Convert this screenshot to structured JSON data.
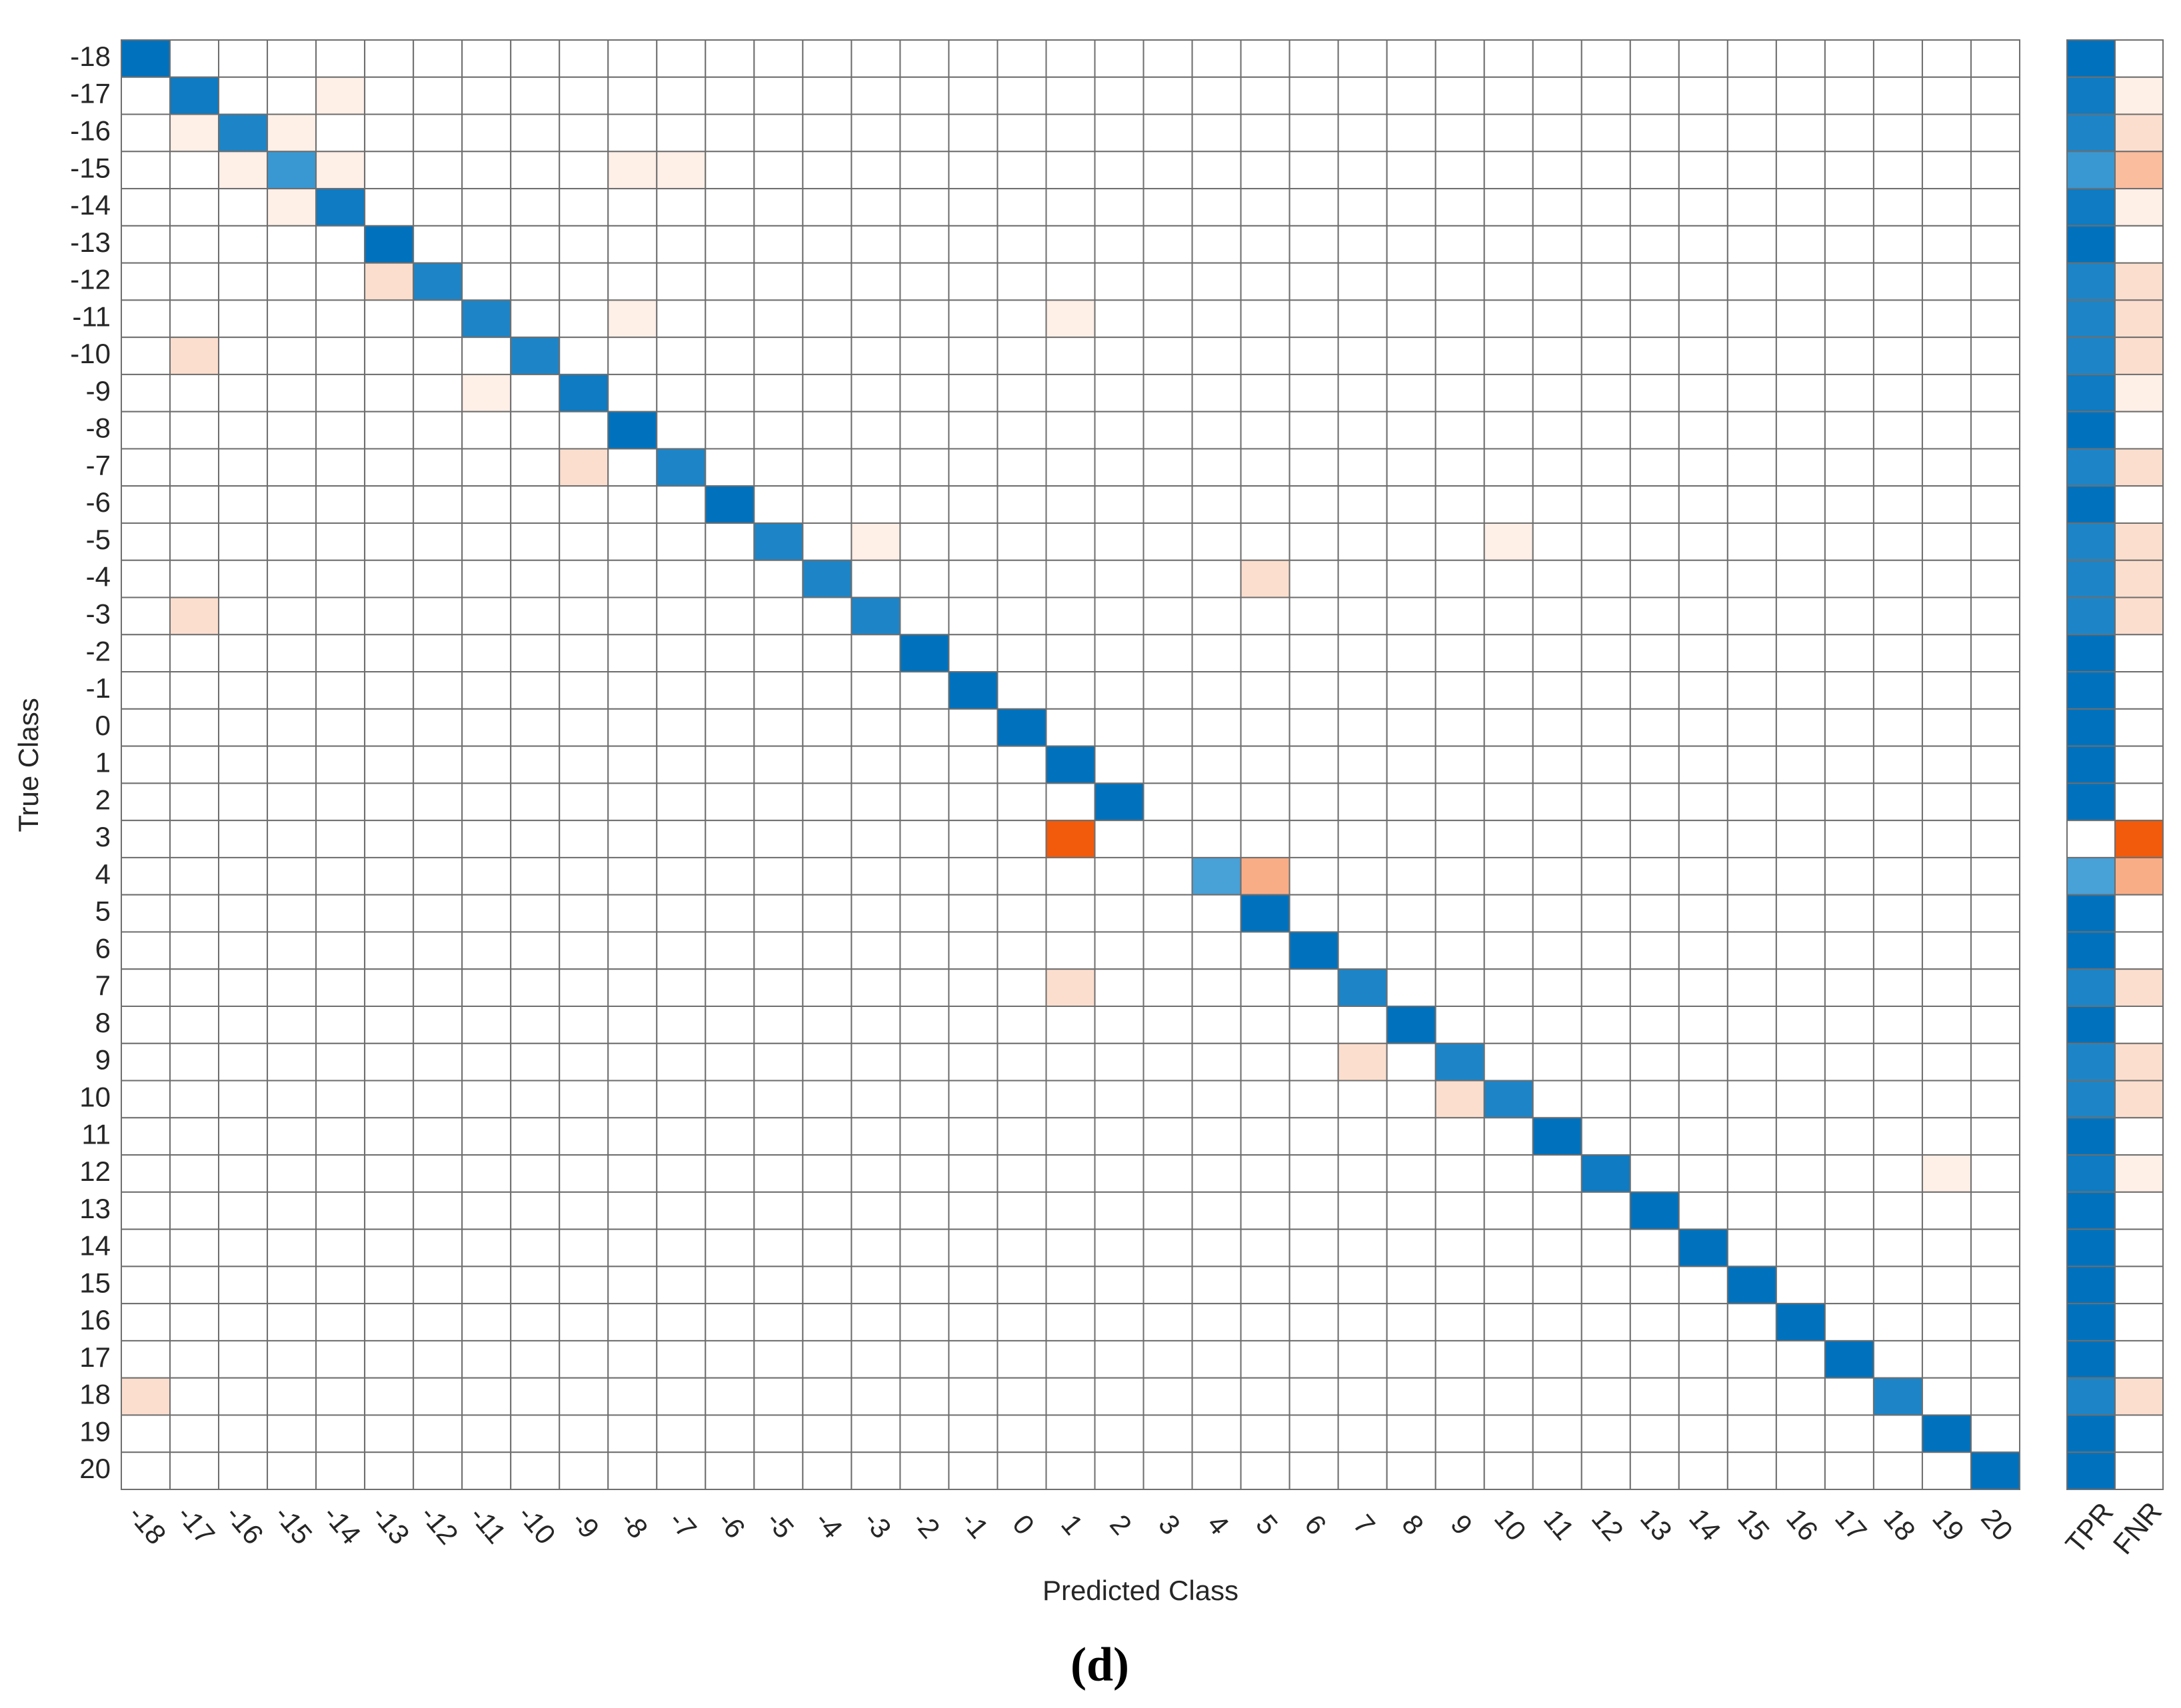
{
  "chart_data": {
    "type": "heatmap",
    "x_label": "Predicted Class",
    "y_label": "True Class",
    "categories": [
      -18,
      -17,
      -16,
      -15,
      -14,
      -13,
      -12,
      -11,
      -10,
      -9,
      -8,
      -7,
      -6,
      -5,
      -4,
      -3,
      -2,
      -1,
      0,
      1,
      2,
      3,
      4,
      5,
      6,
      7,
      8,
      9,
      10,
      11,
      12,
      13,
      14,
      15,
      16,
      17,
      18,
      19,
      20
    ],
    "values": [
      [
        10,
        0,
        0,
        0,
        0,
        0,
        0,
        0,
        0,
        0,
        0,
        0,
        0,
        0,
        0,
        0,
        0,
        0,
        0,
        0,
        0,
        0,
        0,
        0,
        0,
        0,
        0,
        0,
        0,
        0,
        0,
        0,
        0,
        0,
        0,
        0,
        0,
        0,
        0
      ],
      [
        0,
        9,
        0,
        0,
        1,
        0,
        0,
        0,
        0,
        0,
        0,
        0,
        0,
        0,
        0,
        0,
        0,
        0,
        0,
        0,
        0,
        0,
        0,
        0,
        0,
        0,
        0,
        0,
        0,
        0,
        0,
        0,
        0,
        0,
        0,
        0,
        0,
        0,
        0
      ],
      [
        0,
        1,
        8,
        1,
        0,
        0,
        0,
        0,
        0,
        0,
        0,
        0,
        0,
        0,
        0,
        0,
        0,
        0,
        0,
        0,
        0,
        0,
        0,
        0,
        0,
        0,
        0,
        0,
        0,
        0,
        0,
        0,
        0,
        0,
        0,
        0,
        0,
        0,
        0
      ],
      [
        0,
        0,
        1,
        6,
        1,
        0,
        0,
        0,
        0,
        0,
        1,
        1,
        0,
        0,
        0,
        0,
        0,
        0,
        0,
        0,
        0,
        0,
        0,
        0,
        0,
        0,
        0,
        0,
        0,
        0,
        0,
        0,
        0,
        0,
        0,
        0,
        0,
        0,
        0
      ],
      [
        0,
        0,
        0,
        1,
        9,
        0,
        0,
        0,
        0,
        0,
        0,
        0,
        0,
        0,
        0,
        0,
        0,
        0,
        0,
        0,
        0,
        0,
        0,
        0,
        0,
        0,
        0,
        0,
        0,
        0,
        0,
        0,
        0,
        0,
        0,
        0,
        0,
        0,
        0
      ],
      [
        0,
        0,
        0,
        0,
        0,
        10,
        0,
        0,
        0,
        0,
        0,
        0,
        0,
        0,
        0,
        0,
        0,
        0,
        0,
        0,
        0,
        0,
        0,
        0,
        0,
        0,
        0,
        0,
        0,
        0,
        0,
        0,
        0,
        0,
        0,
        0,
        0,
        0,
        0
      ],
      [
        0,
        0,
        0,
        0,
        0,
        2,
        8,
        0,
        0,
        0,
        0,
        0,
        0,
        0,
        0,
        0,
        0,
        0,
        0,
        0,
        0,
        0,
        0,
        0,
        0,
        0,
        0,
        0,
        0,
        0,
        0,
        0,
        0,
        0,
        0,
        0,
        0,
        0,
        0
      ],
      [
        0,
        0,
        0,
        0,
        0,
        0,
        0,
        8,
        0,
        0,
        1,
        0,
        0,
        0,
        0,
        0,
        0,
        0,
        0,
        1,
        0,
        0,
        0,
        0,
        0,
        0,
        0,
        0,
        0,
        0,
        0,
        0,
        0,
        0,
        0,
        0,
        0,
        0,
        0
      ],
      [
        0,
        2,
        0,
        0,
        0,
        0,
        0,
        0,
        8,
        0,
        0,
        0,
        0,
        0,
        0,
        0,
        0,
        0,
        0,
        0,
        0,
        0,
        0,
        0,
        0,
        0,
        0,
        0,
        0,
        0,
        0,
        0,
        0,
        0,
        0,
        0,
        0,
        0,
        0
      ],
      [
        0,
        0,
        0,
        0,
        0,
        0,
        0,
        1,
        0,
        9,
        0,
        0,
        0,
        0,
        0,
        0,
        0,
        0,
        0,
        0,
        0,
        0,
        0,
        0,
        0,
        0,
        0,
        0,
        0,
        0,
        0,
        0,
        0,
        0,
        0,
        0,
        0,
        0,
        0
      ],
      [
        0,
        0,
        0,
        0,
        0,
        0,
        0,
        0,
        0,
        0,
        10,
        0,
        0,
        0,
        0,
        0,
        0,
        0,
        0,
        0,
        0,
        0,
        0,
        0,
        0,
        0,
        0,
        0,
        0,
        0,
        0,
        0,
        0,
        0,
        0,
        0,
        0,
        0,
        0
      ],
      [
        0,
        0,
        0,
        0,
        0,
        0,
        0,
        0,
        0,
        2,
        0,
        8,
        0,
        0,
        0,
        0,
        0,
        0,
        0,
        0,
        0,
        0,
        0,
        0,
        0,
        0,
        0,
        0,
        0,
        0,
        0,
        0,
        0,
        0,
        0,
        0,
        0,
        0,
        0
      ],
      [
        0,
        0,
        0,
        0,
        0,
        0,
        0,
        0,
        0,
        0,
        0,
        0,
        10,
        0,
        0,
        0,
        0,
        0,
        0,
        0,
        0,
        0,
        0,
        0,
        0,
        0,
        0,
        0,
        0,
        0,
        0,
        0,
        0,
        0,
        0,
        0,
        0,
        0,
        0
      ],
      [
        0,
        0,
        0,
        0,
        0,
        0,
        0,
        0,
        0,
        0,
        0,
        0,
        0,
        8,
        0,
        1,
        0,
        0,
        0,
        0,
        0,
        0,
        0,
        0,
        0,
        0,
        0,
        0,
        1,
        0,
        0,
        0,
        0,
        0,
        0,
        0,
        0,
        0,
        0
      ],
      [
        0,
        0,
        0,
        0,
        0,
        0,
        0,
        0,
        0,
        0,
        0,
        0,
        0,
        0,
        8,
        0,
        0,
        0,
        0,
        0,
        0,
        0,
        0,
        2,
        0,
        0,
        0,
        0,
        0,
        0,
        0,
        0,
        0,
        0,
        0,
        0,
        0,
        0,
        0
      ],
      [
        0,
        2,
        0,
        0,
        0,
        0,
        0,
        0,
        0,
        0,
        0,
        0,
        0,
        0,
        0,
        8,
        0,
        0,
        0,
        0,
        0,
        0,
        0,
        0,
        0,
        0,
        0,
        0,
        0,
        0,
        0,
        0,
        0,
        0,
        0,
        0,
        0,
        0,
        0
      ],
      [
        0,
        0,
        0,
        0,
        0,
        0,
        0,
        0,
        0,
        0,
        0,
        0,
        0,
        0,
        0,
        0,
        10,
        0,
        0,
        0,
        0,
        0,
        0,
        0,
        0,
        0,
        0,
        0,
        0,
        0,
        0,
        0,
        0,
        0,
        0,
        0,
        0,
        0,
        0
      ],
      [
        0,
        0,
        0,
        0,
        0,
        0,
        0,
        0,
        0,
        0,
        0,
        0,
        0,
        0,
        0,
        0,
        0,
        10,
        0,
        0,
        0,
        0,
        0,
        0,
        0,
        0,
        0,
        0,
        0,
        0,
        0,
        0,
        0,
        0,
        0,
        0,
        0,
        0,
        0
      ],
      [
        0,
        0,
        0,
        0,
        0,
        0,
        0,
        0,
        0,
        0,
        0,
        0,
        0,
        0,
        0,
        0,
        0,
        0,
        10,
        0,
        0,
        0,
        0,
        0,
        0,
        0,
        0,
        0,
        0,
        0,
        0,
        0,
        0,
        0,
        0,
        0,
        0,
        0,
        0
      ],
      [
        0,
        0,
        0,
        0,
        0,
        0,
        0,
        0,
        0,
        0,
        0,
        0,
        0,
        0,
        0,
        0,
        0,
        0,
        0,
        10,
        0,
        0,
        0,
        0,
        0,
        0,
        0,
        0,
        0,
        0,
        0,
        0,
        0,
        0,
        0,
        0,
        0,
        0,
        0
      ],
      [
        0,
        0,
        0,
        0,
        0,
        0,
        0,
        0,
        0,
        0,
        0,
        0,
        0,
        0,
        0,
        0,
        0,
        0,
        0,
        0,
        10,
        0,
        0,
        0,
        0,
        0,
        0,
        0,
        0,
        0,
        0,
        0,
        0,
        0,
        0,
        0,
        0,
        0,
        0
      ],
      [
        0,
        0,
        0,
        0,
        0,
        0,
        0,
        0,
        0,
        0,
        0,
        0,
        0,
        0,
        0,
        0,
        0,
        0,
        0,
        10,
        0,
        0,
        0,
        0,
        0,
        0,
        0,
        0,
        0,
        0,
        0,
        0,
        0,
        0,
        0,
        0,
        0,
        0,
        0
      ],
      [
        0,
        0,
        0,
        0,
        0,
        0,
        0,
        0,
        0,
        0,
        0,
        0,
        0,
        0,
        0,
        0,
        0,
        0,
        0,
        0,
        0,
        0,
        5,
        5,
        0,
        0,
        0,
        0,
        0,
        0,
        0,
        0,
        0,
        0,
        0,
        0,
        0,
        0,
        0
      ],
      [
        0,
        0,
        0,
        0,
        0,
        0,
        0,
        0,
        0,
        0,
        0,
        0,
        0,
        0,
        0,
        0,
        0,
        0,
        0,
        0,
        0,
        0,
        0,
        10,
        0,
        0,
        0,
        0,
        0,
        0,
        0,
        0,
        0,
        0,
        0,
        0,
        0,
        0,
        0
      ],
      [
        0,
        0,
        0,
        0,
        0,
        0,
        0,
        0,
        0,
        0,
        0,
        0,
        0,
        0,
        0,
        0,
        0,
        0,
        0,
        0,
        0,
        0,
        0,
        0,
        10,
        0,
        0,
        0,
        0,
        0,
        0,
        0,
        0,
        0,
        0,
        0,
        0,
        0,
        0
      ],
      [
        0,
        0,
        0,
        0,
        0,
        0,
        0,
        0,
        0,
        0,
        0,
        0,
        0,
        0,
        0,
        0,
        0,
        0,
        0,
        2,
        0,
        0,
        0,
        0,
        0,
        8,
        0,
        0,
        0,
        0,
        0,
        0,
        0,
        0,
        0,
        0,
        0,
        0,
        0
      ],
      [
        0,
        0,
        0,
        0,
        0,
        0,
        0,
        0,
        0,
        0,
        0,
        0,
        0,
        0,
        0,
        0,
        0,
        0,
        0,
        0,
        0,
        0,
        0,
        0,
        0,
        0,
        10,
        0,
        0,
        0,
        0,
        0,
        0,
        0,
        0,
        0,
        0,
        0,
        0
      ],
      [
        0,
        0,
        0,
        0,
        0,
        0,
        0,
        0,
        0,
        0,
        0,
        0,
        0,
        0,
        0,
        0,
        0,
        0,
        0,
        0,
        0,
        0,
        0,
        0,
        0,
        2,
        0,
        8,
        0,
        0,
        0,
        0,
        0,
        0,
        0,
        0,
        0,
        0,
        0
      ],
      [
        0,
        0,
        0,
        0,
        0,
        0,
        0,
        0,
        0,
        0,
        0,
        0,
        0,
        0,
        0,
        0,
        0,
        0,
        0,
        0,
        0,
        0,
        0,
        0,
        0,
        0,
        0,
        2,
        8,
        0,
        0,
        0,
        0,
        0,
        0,
        0,
        0,
        0,
        0
      ],
      [
        0,
        0,
        0,
        0,
        0,
        0,
        0,
        0,
        0,
        0,
        0,
        0,
        0,
        0,
        0,
        0,
        0,
        0,
        0,
        0,
        0,
        0,
        0,
        0,
        0,
        0,
        0,
        0,
        0,
        10,
        0,
        0,
        0,
        0,
        0,
        0,
        0,
        0,
        0
      ],
      [
        0,
        0,
        0,
        0,
        0,
        0,
        0,
        0,
        0,
        0,
        0,
        0,
        0,
        0,
        0,
        0,
        0,
        0,
        0,
        0,
        0,
        0,
        0,
        0,
        0,
        0,
        0,
        0,
        0,
        0,
        9,
        0,
        0,
        0,
        0,
        0,
        0,
        1,
        0
      ],
      [
        0,
        0,
        0,
        0,
        0,
        0,
        0,
        0,
        0,
        0,
        0,
        0,
        0,
        0,
        0,
        0,
        0,
        0,
        0,
        0,
        0,
        0,
        0,
        0,
        0,
        0,
        0,
        0,
        0,
        0,
        0,
        10,
        0,
        0,
        0,
        0,
        0,
        0,
        0
      ],
      [
        0,
        0,
        0,
        0,
        0,
        0,
        0,
        0,
        0,
        0,
        0,
        0,
        0,
        0,
        0,
        0,
        0,
        0,
        0,
        0,
        0,
        0,
        0,
        0,
        0,
        0,
        0,
        0,
        0,
        0,
        0,
        0,
        10,
        0,
        0,
        0,
        0,
        0,
        0
      ],
      [
        0,
        0,
        0,
        0,
        0,
        0,
        0,
        0,
        0,
        0,
        0,
        0,
        0,
        0,
        0,
        0,
        0,
        0,
        0,
        0,
        0,
        0,
        0,
        0,
        0,
        0,
        0,
        0,
        0,
        0,
        0,
        0,
        0,
        10,
        0,
        0,
        0,
        0,
        0
      ],
      [
        0,
        0,
        0,
        0,
        0,
        0,
        0,
        0,
        0,
        0,
        0,
        0,
        0,
        0,
        0,
        0,
        0,
        0,
        0,
        0,
        0,
        0,
        0,
        0,
        0,
        0,
        0,
        0,
        0,
        0,
        0,
        0,
        0,
        0,
        10,
        0,
        0,
        0,
        0
      ],
      [
        0,
        0,
        0,
        0,
        0,
        0,
        0,
        0,
        0,
        0,
        0,
        0,
        0,
        0,
        0,
        0,
        0,
        0,
        0,
        0,
        0,
        0,
        0,
        0,
        0,
        0,
        0,
        0,
        0,
        0,
        0,
        0,
        0,
        0,
        0,
        10,
        0,
        0,
        0
      ],
      [
        2,
        0,
        0,
        0,
        0,
        0,
        0,
        0,
        0,
        0,
        0,
        0,
        0,
        0,
        0,
        0,
        0,
        0,
        0,
        0,
        0,
        0,
        0,
        0,
        0,
        0,
        0,
        0,
        0,
        0,
        0,
        0,
        0,
        0,
        0,
        0,
        8,
        0,
        0
      ],
      [
        0,
        0,
        0,
        0,
        0,
        0,
        0,
        0,
        0,
        0,
        0,
        0,
        0,
        0,
        0,
        0,
        0,
        0,
        0,
        0,
        0,
        0,
        0,
        0,
        0,
        0,
        0,
        0,
        0,
        0,
        0,
        0,
        0,
        0,
        0,
        0,
        0,
        10,
        0
      ],
      [
        0,
        0,
        0,
        0,
        0,
        0,
        0,
        0,
        0,
        0,
        0,
        0,
        0,
        0,
        0,
        0,
        0,
        0,
        0,
        0,
        0,
        0,
        0,
        0,
        0,
        0,
        0,
        0,
        0,
        0,
        0,
        0,
        0,
        0,
        0,
        0,
        0,
        0,
        10
      ]
    ],
    "summary_labels": [
      "TPR",
      "FNR"
    ],
    "tpr": [
      100,
      90,
      80,
      60,
      90,
      100,
      80,
      80,
      80,
      90,
      100,
      80,
      100,
      80,
      80,
      80,
      100,
      100,
      100,
      100,
      100,
      0,
      50,
      100,
      100,
      80,
      100,
      80,
      80,
      100,
      90,
      100,
      100,
      100,
      100,
      100,
      80,
      100,
      100
    ],
    "fnr": [
      0,
      10,
      20,
      40,
      10,
      0,
      20,
      20,
      20,
      10,
      0,
      20,
      0,
      20,
      20,
      20,
      0,
      0,
      0,
      0,
      0,
      100,
      50,
      0,
      0,
      20,
      0,
      20,
      20,
      0,
      10,
      0,
      0,
      0,
      0,
      0,
      20,
      0,
      0
    ],
    "colors": {
      "diagonal": "#0072bd",
      "off_diagonal": "#f25a0c"
    },
    "grid": true
  },
  "caption": "(d)"
}
